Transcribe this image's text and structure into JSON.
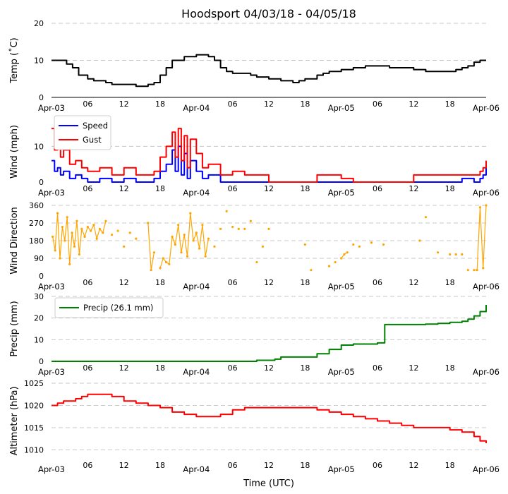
{
  "title": "Hoodsport 04/03/18 - 04/05/18",
  "xlabel": "Time (UTC)",
  "x_ticks": [
    "Apr-03",
    "06",
    "12",
    "18",
    "Apr-04",
    "06",
    "12",
    "18",
    "Apr-05",
    "06",
    "12",
    "18",
    "Apr-06"
  ],
  "colors": {
    "temp": "#000000",
    "speed": "#0000ff",
    "gust": "#ff0000",
    "direction": "#ffa500",
    "precip": "#008000",
    "altimeter": "#ff0000",
    "grid": "#c8c8c8"
  },
  "chart_data": [
    {
      "type": "line",
      "name": "temp",
      "ylabel": "Temp (˚C)",
      "ylim": [
        0,
        20
      ],
      "yticks": [
        "0",
        "10",
        "20"
      ],
      "xlim_hours": [
        0,
        72
      ],
      "series": [
        {
          "name": "Temp",
          "x": [
            0,
            1.5,
            2.5,
            3.5,
            4.5,
            6,
            7,
            8,
            9,
            10,
            11,
            12,
            14,
            15,
            16,
            17,
            18,
            19,
            20,
            22,
            24,
            26,
            27,
            28,
            29,
            30,
            33,
            34,
            36,
            38,
            40,
            41,
            42,
            44,
            45,
            46,
            48,
            50,
            52,
            54,
            56,
            58,
            60,
            62,
            64,
            66,
            67,
            68,
            69,
            70,
            71,
            72
          ],
          "values": [
            10,
            10,
            9,
            8,
            6,
            5,
            4.5,
            4.5,
            4,
            3.5,
            3.5,
            3.5,
            3,
            3,
            3.5,
            4,
            6,
            8,
            10,
            11,
            11.5,
            11,
            10,
            8,
            7,
            6.5,
            6,
            5.5,
            5,
            4.5,
            4,
            4.5,
            5,
            6,
            6.5,
            7,
            7.5,
            8,
            8.5,
            8.5,
            8,
            8,
            7.5,
            7,
            7,
            7,
            7.5,
            8,
            8.5,
            9.5,
            10,
            10
          ]
        }
      ]
    },
    {
      "type": "line",
      "name": "wind",
      "ylabel": "Wind (mph)",
      "ylim": [
        0,
        17
      ],
      "yticks": [
        "0",
        "10"
      ],
      "xlim_hours": [
        0,
        72
      ],
      "legend": "top-left",
      "series": [
        {
          "name": "Speed",
          "x": [
            0,
            0.5,
            1,
            1.5,
            2,
            3,
            4,
            5,
            6,
            8,
            10,
            12,
            14,
            16,
            17,
            18,
            19,
            20,
            20.5,
            21,
            21.5,
            22,
            22.5,
            23,
            24,
            25,
            26,
            28,
            30,
            40,
            50,
            60,
            66,
            68,
            70,
            71,
            71.5,
            72
          ],
          "values": [
            6,
            3,
            4,
            2,
            3,
            1,
            2,
            1,
            0,
            1,
            0,
            1,
            0,
            0,
            1,
            3,
            5,
            9,
            3,
            10,
            2,
            8,
            1,
            6,
            3,
            1,
            2,
            0,
            0,
            0,
            0,
            0,
            0,
            1,
            0,
            1,
            2,
            4
          ]
        },
        {
          "name": "Gust",
          "x": [
            0,
            0.5,
            1,
            1.5,
            2,
            3,
            4,
            5,
            6,
            8,
            10,
            12,
            14,
            16,
            17,
            18,
            19,
            20,
            20.5,
            21,
            21.5,
            22,
            22.5,
            23,
            24,
            25,
            26,
            28,
            30,
            32,
            34,
            36,
            38,
            40,
            42,
            44,
            46,
            48,
            50,
            52,
            54,
            56,
            58,
            60,
            62,
            64,
            66,
            68,
            70,
            71,
            71.5,
            72
          ],
          "values": [
            15,
            9,
            11,
            7,
            9,
            5,
            6,
            4,
            3,
            4,
            2,
            4,
            2,
            2,
            3,
            7,
            10,
            14,
            7,
            15,
            6,
            13,
            4,
            12,
            8,
            4,
            5,
            2,
            3,
            2,
            2,
            0,
            0,
            0,
            0,
            2,
            2,
            1,
            0,
            0,
            0,
            0,
            0,
            2,
            2,
            2,
            2,
            2,
            2,
            3,
            4,
            6
          ]
        }
      ]
    },
    {
      "type": "scatter",
      "name": "direction",
      "ylabel": "Wind Direction",
      "ylim": [
        0,
        360
      ],
      "yticks": [
        "0",
        "90",
        "180",
        "270",
        "360"
      ],
      "xlim_hours": [
        0,
        72
      ],
      "series": [
        {
          "name": "Direction",
          "x": [
            0.2,
            0.6,
            1,
            1.4,
            1.8,
            2.2,
            2.6,
            3,
            3.4,
            3.8,
            4.2,
            4.6,
            5,
            5.5,
            6,
            6.5,
            7,
            7.5,
            8,
            8.5,
            9,
            10,
            11,
            12,
            13,
            14,
            16,
            16.5,
            17,
            18,
            18.5,
            19,
            19.5,
            20,
            20.5,
            21,
            21.5,
            22,
            22.5,
            23,
            23.5,
            24,
            24.5,
            25,
            25.5,
            26,
            27,
            28,
            29,
            30,
            31,
            32,
            33,
            34,
            35,
            36,
            42,
            43,
            46,
            47,
            48,
            48.5,
            49,
            50,
            51,
            53,
            55,
            61,
            62,
            64,
            66,
            67,
            68,
            69,
            70,
            70.5,
            71,
            71.5,
            72
          ],
          "values": [
            200,
            130,
            320,
            90,
            250,
            180,
            300,
            60,
            220,
            150,
            280,
            110,
            240,
            200,
            250,
            230,
            260,
            190,
            240,
            220,
            280,
            210,
            230,
            150,
            220,
            190,
            270,
            30,
            120,
            40,
            90,
            70,
            60,
            200,
            160,
            260,
            120,
            210,
            100,
            320,
            180,
            220,
            140,
            260,
            100,
            190,
            150,
            240,
            330,
            250,
            240,
            240,
            280,
            70,
            150,
            240,
            160,
            30,
            50,
            70,
            90,
            110,
            120,
            160,
            150,
            170,
            160,
            180,
            300,
            120,
            110,
            110,
            110,
            30,
            30,
            30,
            350,
            40,
            360
          ]
        }
      ]
    },
    {
      "type": "line",
      "name": "precip",
      "ylabel": "Precip (mm)",
      "ylim": [
        0,
        30
      ],
      "yticks": [
        "0",
        "10",
        "20",
        "30"
      ],
      "xlim_hours": [
        0,
        72
      ],
      "legend": "top-left",
      "series": [
        {
          "name": "Precip (26.1 mm)",
          "x": [
            0,
            32,
            34,
            37,
            38,
            42,
            44,
            46,
            48,
            50,
            52,
            54,
            55,
            55.2,
            58,
            60,
            62,
            64,
            66,
            68,
            69,
            70,
            71,
            72
          ],
          "values": [
            0,
            0,
            0.5,
            1,
            2,
            2,
            3.5,
            5.5,
            7.5,
            8,
            8,
            8.5,
            8.5,
            17,
            17,
            17,
            17.2,
            17.5,
            18,
            18.5,
            19.5,
            21,
            23,
            26.1
          ]
        }
      ]
    },
    {
      "type": "line",
      "name": "altimeter",
      "ylabel": "Altimeter (hPa)",
      "ylim": [
        1008,
        1025
      ],
      "yticks": [
        "1010",
        "1015",
        "1020",
        "1025"
      ],
      "xlim_hours": [
        0,
        72
      ],
      "series": [
        {
          "name": "Altimeter",
          "x": [
            0,
            1,
            2,
            3,
            4,
            5,
            6,
            8,
            10,
            12,
            14,
            16,
            18,
            20,
            22,
            24,
            26,
            28,
            30,
            32,
            34,
            36,
            38,
            40,
            42,
            44,
            46,
            48,
            50,
            52,
            54,
            56,
            58,
            60,
            62,
            64,
            66,
            68,
            70,
            71,
            72
          ],
          "values": [
            1020,
            1020.5,
            1021,
            1021,
            1021.5,
            1022,
            1022.5,
            1022.5,
            1022,
            1021,
            1020.5,
            1020,
            1019.5,
            1018.5,
            1018,
            1017.5,
            1017.5,
            1018,
            1019,
            1019.5,
            1019.5,
            1019.5,
            1019.5,
            1019.5,
            1019.5,
            1019,
            1018.5,
            1018,
            1017.5,
            1017,
            1016.5,
            1016,
            1015.5,
            1015,
            1015,
            1015,
            1014.5,
            1014,
            1013,
            1012,
            1011.5
          ]
        }
      ]
    }
  ]
}
